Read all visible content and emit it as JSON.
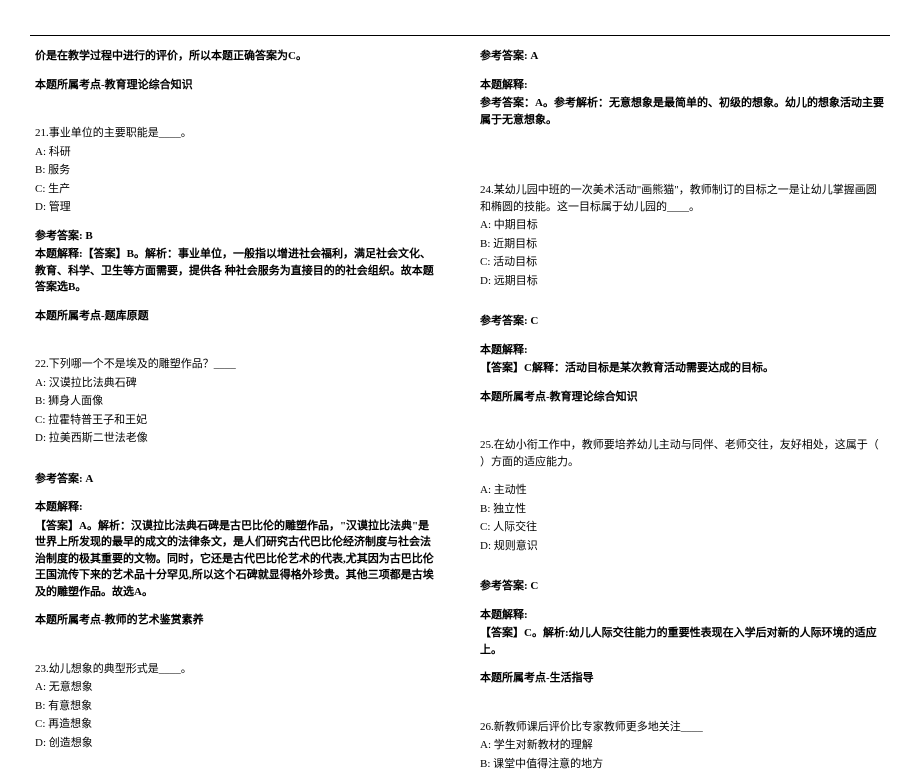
{
  "left": {
    "intro_line": "价是在教学过程中进行的评价，所以本题正确答案为C。",
    "intro_topic": "本题所属考点-教育理论综合知识",
    "q21": {
      "stem": "21.事业单位的主要职能是____。",
      "a": "A: 科研",
      "b": "B: 服务",
      "c": "C: 生产",
      "d": "D: 管理",
      "ans_label": "参考答案: B",
      "explain": "本题解释:【答案】B。解析：事业单位，一般指以增进社会福利，满足社会文化、教育、科学、卫生等方面需要，提供各 种社会服务为直接目的的社会组织。故本题答案选B。",
      "topic": "本题所属考点-题库原题"
    },
    "q22": {
      "stem": "22.下列哪一个不是埃及的雕塑作品？____",
      "a": "A: 汉谟拉比法典石碑",
      "b": "B: 狮身人面像",
      "c": "C: 拉霍特普王子和王妃",
      "d": "D: 拉美西斯二世法老像",
      "ans_label": "参考答案: A",
      "explain_label": "本题解释:",
      "explain": "【答案】A。解析：汉谟拉比法典石碑是古巴比伦的雕塑作品，\"汉谟拉比法典\"是世界上所发现的最早的成文的法律条文，是人们研究古代巴比伦经济制度与社会法治制度的极其重要的文物。同时，它还是古代巴比伦艺术的代表,尤其因为古巴比伦王国流传下来的艺术品十分罕见,所以这个石碑就显得格外珍贵。其他三项都是古埃及的雕塑作品。故选A。",
      "topic": "本题所属考点-教师的艺术鉴赏素养"
    },
    "q23": {
      "stem": "23.幼儿想象的典型形式是____。",
      "a": "A: 无意想象",
      "b": "B: 有意想象",
      "c": "C: 再造想象",
      "d": "D: 创造想象"
    }
  },
  "right": {
    "ans23": "参考答案: A",
    "explain23_label": "本题解释:",
    "explain23": "参考答案：A。参考解析：无意想象是最简单的、初级的想象。幼儿的想象活动主要属于无意想象。",
    "q24": {
      "stem": "24.某幼儿园中班的一次美术活动\"画熊猫\"，教师制订的目标之一是让幼儿掌握画圆和椭圆的技能。这一目标属于幼儿园的____。",
      "a": "A: 中期目标",
      "b": "B: 近期目标",
      "c": "C: 活动目标",
      "d": "D: 远期目标",
      "ans_label": "参考答案: C",
      "explain_label": "本题解释:",
      "explain": "【答案】C解释：活动目标是某次教育活动需要达成的目标。",
      "topic": "本题所属考点-教育理论综合知识"
    },
    "q25": {
      "stem": "25.在幼小衔工作中，教师要培养幼儿主动与同伴、老师交往，友好相处，这属于（    ）方面的适应能力。",
      "a": "A: 主动性",
      "b": "B: 独立性",
      "c": "C: 人际交往",
      "d": "D: 规则意识",
      "ans_label": "参考答案: C",
      "explain_label": "本题解释:",
      "explain": "【答案】C。解析:幼儿人际交往能力的重要性表现在入学后对新的人际环境的适应上。",
      "topic": "本题所属考点-生活指导"
    },
    "q26": {
      "stem": "26.新教师课后评价比专家教师更多地关注____",
      "a": "A: 学生对新教材的理解",
      "b": "B: 课堂中值得注意的地方"
    }
  }
}
